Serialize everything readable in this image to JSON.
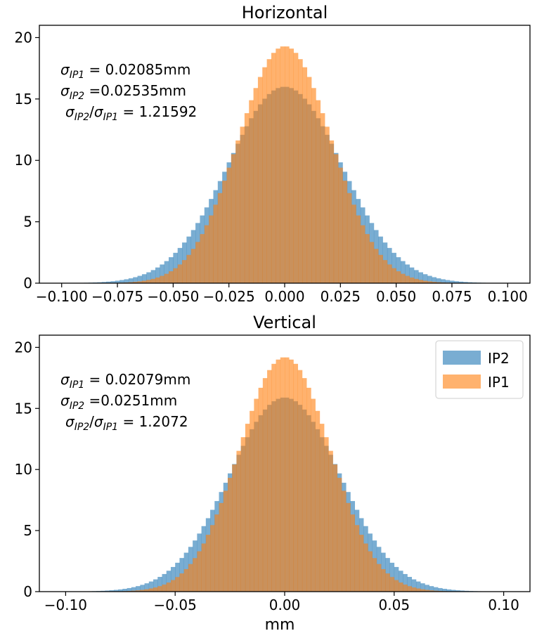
{
  "colors": {
    "IP2": "#1f77b4",
    "IP1": "#ff7f0e"
  },
  "xlabel": "mm",
  "legend": {
    "entries": [
      "IP2",
      "IP1"
    ],
    "placement": "top-right",
    "in_panel": 1
  },
  "chart_data": [
    {
      "type": "histogram",
      "title": "Horizontal",
      "xlim": [
        -0.11,
        0.11
      ],
      "ylim": [
        0,
        21
      ],
      "xticks": [
        -0.1,
        -0.075,
        -0.05,
        -0.025,
        0.0,
        0.025,
        0.05,
        0.075,
        0.1
      ],
      "xtick_labels": [
        "−0.100",
        "−0.075",
        "−0.050",
        "−0.025",
        "0.000",
        "0.025",
        "0.050",
        "0.075",
        "0.100"
      ],
      "yticks": [
        0,
        5,
        10,
        15,
        20
      ],
      "ytick_labels": [
        "0",
        "5",
        "10",
        "15",
        "20"
      ],
      "series": [
        {
          "name": "IP2",
          "sigma": 0.02535,
          "peak": 16.0,
          "range": [
            -0.1,
            0.1
          ],
          "bins": 100
        },
        {
          "name": "IP1",
          "sigma": 0.02085,
          "peak": 19.3,
          "range": [
            -0.1,
            0.1
          ],
          "bins": 100
        }
      ],
      "annotation": [
        {
          "sym": "σ",
          "sub": "IP1",
          "rest": " = 0.02085mm"
        },
        {
          "sym": "σ",
          "sub": "IP2",
          "rest": " =0.02535mm"
        },
        {
          "ratio": true,
          "num_sub": "IP2",
          "den_sub": "IP1",
          "rest": "  = 1.21592"
        }
      ]
    },
    {
      "type": "histogram",
      "title": "Vertical",
      "xlim": [
        -0.112,
        0.112
      ],
      "ylim": [
        0,
        21
      ],
      "xticks": [
        -0.1,
        -0.05,
        0.0,
        0.05,
        0.1
      ],
      "xtick_labels": [
        "−0.10",
        "−0.05",
        "0.00",
        "0.05",
        "0.10"
      ],
      "yticks": [
        0,
        5,
        10,
        15,
        20
      ],
      "ytick_labels": [
        "0",
        "5",
        "10",
        "15",
        "20"
      ],
      "series": [
        {
          "name": "IP2",
          "sigma": 0.0251,
          "peak": 15.9,
          "range": [
            -0.1,
            0.1
          ],
          "bins": 100
        },
        {
          "name": "IP1",
          "sigma": 0.02079,
          "peak": 19.2,
          "range": [
            -0.1,
            0.1
          ],
          "bins": 100
        }
      ],
      "annotation": [
        {
          "sym": "σ",
          "sub": "IP1",
          "rest": " = 0.02079mm"
        },
        {
          "sym": "σ",
          "sub": "IP2",
          "rest": " =0.0251mm"
        },
        {
          "ratio": true,
          "num_sub": "IP2",
          "den_sub": "IP1",
          "rest": "  = 1.2072"
        }
      ]
    }
  ]
}
